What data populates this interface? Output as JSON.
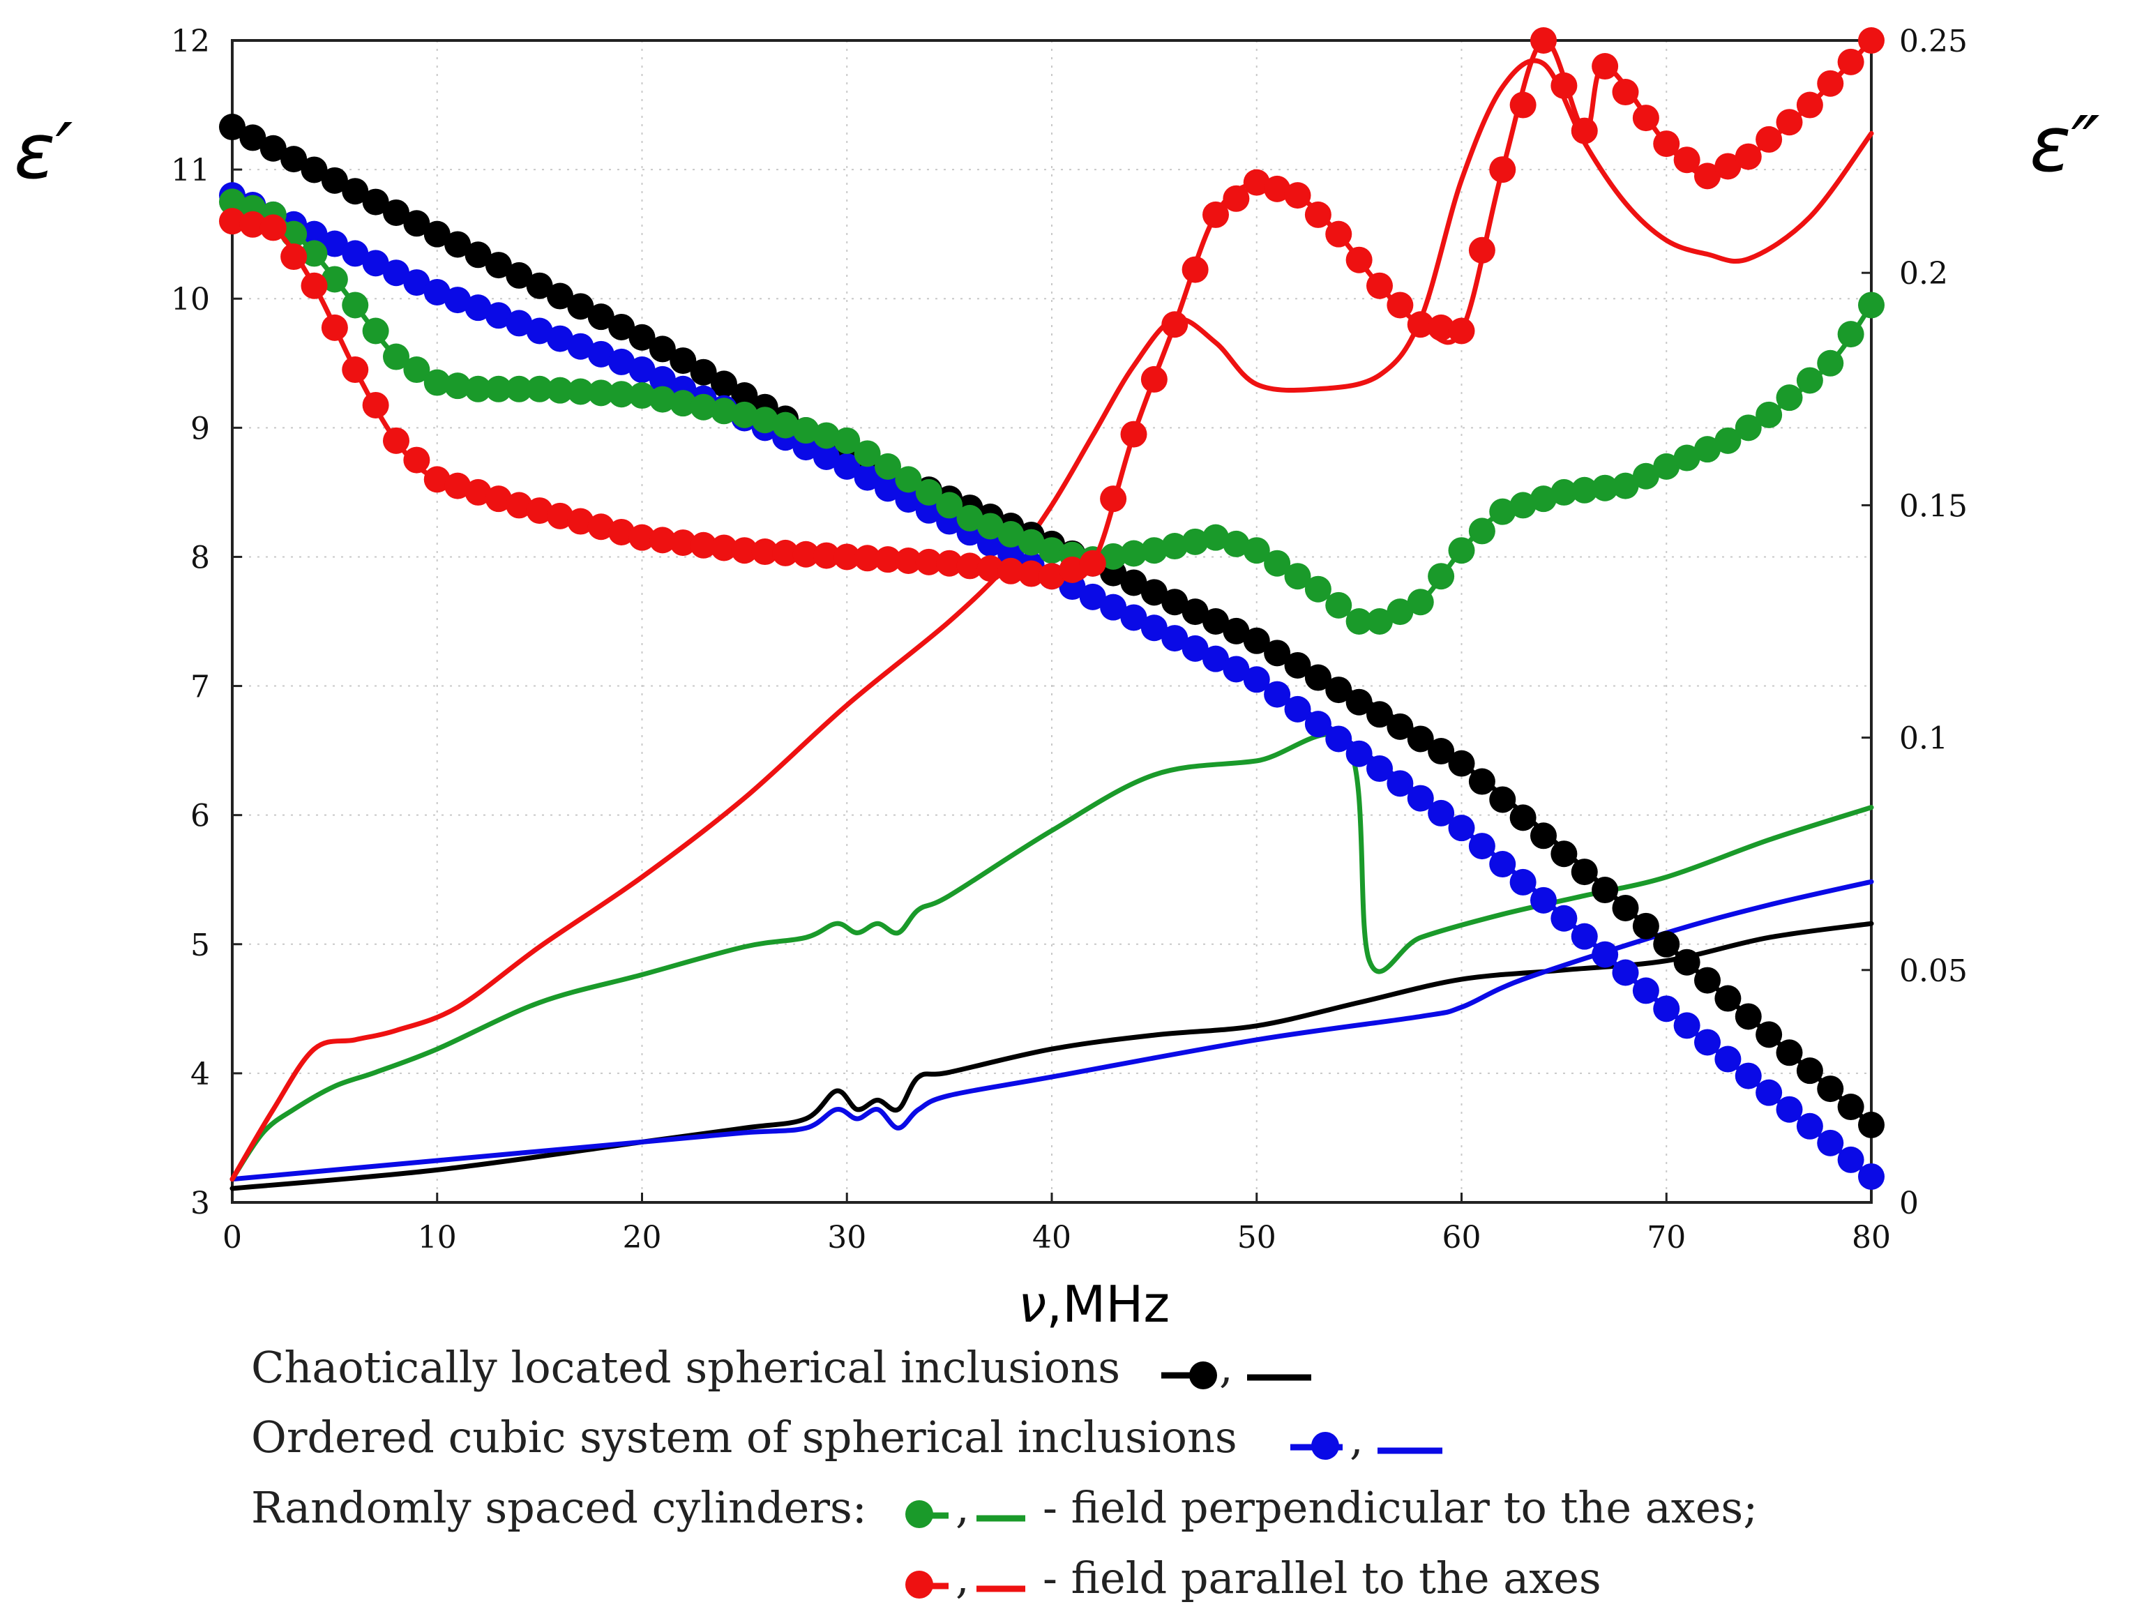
{
  "chart_data": {
    "type": "line",
    "title": "",
    "xlabel_symbol": "ν",
    "xlabel_unit": ",MHz",
    "ylabel_left": "ε′",
    "ylabel_right": "ε″",
    "xlim": [
      0,
      80
    ],
    "ylim_left": [
      3,
      12
    ],
    "ylim_right": [
      0,
      0.25
    ],
    "x_ticks": [
      "0",
      "10",
      "20",
      "30",
      "40",
      "50",
      "60",
      "70",
      "80"
    ],
    "y_left_ticks": [
      "3",
      "4",
      "5",
      "6",
      "7",
      "8",
      "9",
      "10",
      "11",
      "12"
    ],
    "y_right_ticks": [
      "0",
      "0.05",
      "0.1",
      "0.15",
      "0.2",
      "0.25"
    ],
    "grid": true,
    "colors": {
      "black": "#000000",
      "blue": "#0a0ae6",
      "green": "#1a9a2a",
      "red": "#ee1111"
    },
    "series": [
      {
        "name": "chaotic-eps1",
        "axis": "left",
        "style": "markers",
        "color": "#000000",
        "x": [
          0,
          10,
          20,
          30,
          40,
          50,
          60,
          70,
          80
        ],
        "y": [
          11.33,
          10.5,
          9.7,
          8.8,
          8.1,
          7.35,
          6.4,
          5.0,
          3.6
        ]
      },
      {
        "name": "ordered-eps1",
        "axis": "left",
        "style": "markers",
        "color": "#0a0ae6",
        "x": [
          0,
          10,
          20,
          30,
          40,
          50,
          60,
          70,
          80
        ],
        "y": [
          10.8,
          10.05,
          9.45,
          8.7,
          7.85,
          7.05,
          5.9,
          4.5,
          3.2
        ]
      },
      {
        "name": "cyl-perp-eps1",
        "axis": "left",
        "style": "markers",
        "color": "#1a9a2a",
        "x": [
          0,
          2,
          4,
          6,
          8,
          10,
          12,
          15,
          20,
          25,
          30,
          33,
          36,
          40,
          42,
          45,
          48,
          50,
          53,
          55,
          56,
          58,
          60,
          62,
          65,
          68,
          70,
          73,
          75,
          78,
          80
        ],
        "y": [
          10.75,
          10.65,
          10.35,
          9.95,
          9.55,
          9.35,
          9.3,
          9.3,
          9.25,
          9.1,
          8.9,
          8.6,
          8.3,
          8.05,
          7.98,
          8.05,
          8.15,
          8.05,
          7.75,
          7.5,
          7.5,
          7.65,
          8.05,
          8.35,
          8.5,
          8.55,
          8.7,
          8.9,
          9.1,
          9.5,
          9.95
        ]
      },
      {
        "name": "cyl-par-eps1",
        "axis": "left",
        "style": "markers",
        "color": "#ee1111",
        "x": [
          0,
          2,
          4,
          6,
          8,
          10,
          14,
          20,
          25,
          30,
          35,
          40,
          42,
          44,
          46,
          48,
          50,
          52,
          54,
          56,
          58,
          60,
          62,
          64,
          66,
          67,
          70,
          72,
          74,
          77,
          80
        ],
        "y": [
          10.6,
          10.55,
          10.1,
          9.45,
          8.9,
          8.6,
          8.4,
          8.15,
          8.05,
          8.0,
          7.95,
          7.85,
          7.95,
          8.95,
          9.8,
          10.65,
          10.9,
          10.8,
          10.5,
          10.1,
          9.8,
          9.75,
          11.0,
          12.0,
          11.3,
          11.8,
          11.2,
          10.95,
          11.1,
          11.5,
          12.0
        ]
      },
      {
        "name": "chaotic-eps2",
        "axis": "right",
        "style": "line",
        "color": "#000000",
        "x": [
          0,
          10,
          20,
          25,
          28,
          29.5,
          30.5,
          31.5,
          32.5,
          33.5,
          35,
          40,
          45,
          50,
          55,
          60,
          65,
          70,
          75,
          80
        ],
        "y": [
          0.003,
          0.007,
          0.013,
          0.016,
          0.018,
          0.024,
          0.02,
          0.022,
          0.02,
          0.027,
          0.028,
          0.033,
          0.036,
          0.038,
          0.043,
          0.048,
          0.05,
          0.052,
          0.057,
          0.06
        ]
      },
      {
        "name": "ordered-eps2",
        "axis": "right",
        "style": "line",
        "color": "#0a0ae6",
        "x": [
          0,
          10,
          20,
          25,
          28,
          29.5,
          30.5,
          31.5,
          32.5,
          33.5,
          35,
          40,
          50,
          58,
          60,
          63,
          70,
          75,
          80
        ],
        "y": [
          0.005,
          0.009,
          0.013,
          0.015,
          0.016,
          0.02,
          0.018,
          0.02,
          0.016,
          0.02,
          0.023,
          0.027,
          0.035,
          0.04,
          0.042,
          0.048,
          0.058,
          0.064,
          0.069
        ]
      },
      {
        "name": "cyl-perp-eps2",
        "axis": "right",
        "style": "line",
        "color": "#1a9a2a",
        "x": [
          0,
          1.5,
          3,
          5,
          7,
          10,
          15,
          20,
          25,
          28,
          29.5,
          30.5,
          31.5,
          32.5,
          33.5,
          35,
          40,
          45,
          50,
          54.5,
          55.5,
          58,
          62,
          66,
          70,
          75,
          80
        ],
        "y": [
          0.005,
          0.015,
          0.02,
          0.025,
          0.028,
          0.033,
          0.043,
          0.049,
          0.055,
          0.057,
          0.06,
          0.058,
          0.06,
          0.058,
          0.063,
          0.066,
          0.08,
          0.092,
          0.095,
          0.098,
          0.052,
          0.057,
          0.062,
          0.066,
          0.07,
          0.078,
          0.085
        ]
      },
      {
        "name": "cyl-par-eps2",
        "axis": "right",
        "style": "line",
        "color": "#ee1111",
        "x": [
          0,
          2,
          4,
          6,
          8,
          11,
          15,
          20,
          25,
          30,
          35,
          38,
          40,
          42,
          44,
          46,
          48,
          50,
          53,
          56,
          58,
          60,
          62,
          64,
          66,
          68,
          70,
          72,
          74,
          77,
          80
        ],
        "y": [
          0.005,
          0.02,
          0.033,
          0.035,
          0.037,
          0.042,
          0.055,
          0.07,
          0.087,
          0.107,
          0.125,
          0.138,
          0.15,
          0.165,
          0.18,
          0.19,
          0.185,
          0.176,
          0.175,
          0.178,
          0.19,
          0.22,
          0.24,
          0.245,
          0.228,
          0.215,
          0.207,
          0.204,
          0.203,
          0.212,
          0.23
        ]
      }
    ]
  },
  "legend": {
    "line1": "Chaotically located spherical inclusions",
    "line2": "Ordered cubic system of spherical inclusions",
    "line3_prefix": "Randomly spaced cylinders:",
    "line3_suffix": "- field perpendicular to the axes;",
    "line4_suffix": "- field parallel to the axes",
    "separator": ","
  }
}
